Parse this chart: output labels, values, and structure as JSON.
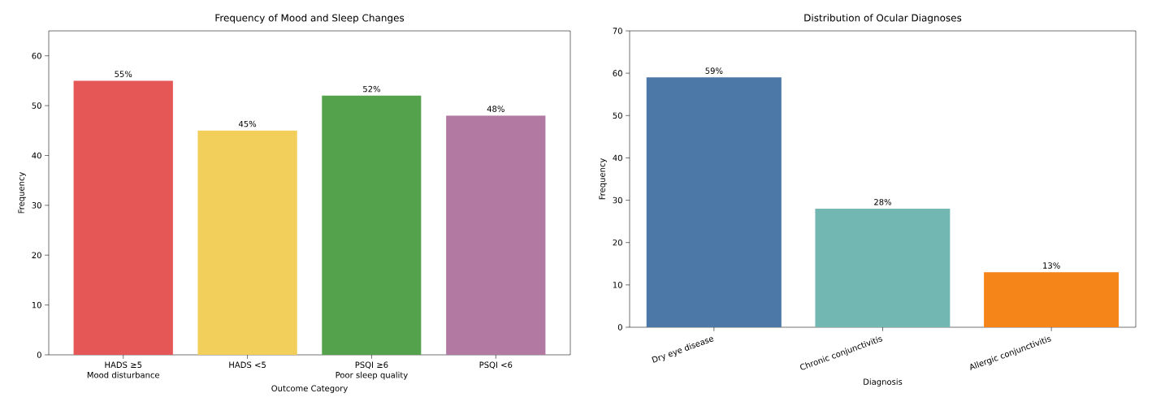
{
  "chart_data": [
    {
      "type": "bar",
      "title": "Frequency of Mood and Sleep Changes",
      "xlabel": "Outcome Category",
      "ylabel": "Frequency",
      "categories": [
        "HADS ≥5\nMood disturbance",
        "HADS <5",
        "PSQI ≥6\nPoor sleep quality",
        "PSQI <6"
      ],
      "values": [
        55,
        45,
        52,
        48
      ],
      "colors": [
        "#e45756",
        "#f2cf5b",
        "#54a24b",
        "#b279a2"
      ],
      "value_labels": [
        "55%",
        "45%",
        "52%",
        "48%"
      ],
      "ylim": [
        0,
        65
      ],
      "yticks": [
        0,
        10,
        20,
        30,
        40,
        50,
        60
      ],
      "grid": false
    },
    {
      "type": "bar",
      "title": "Distribution of Ocular Diagnoses",
      "xlabel": "Diagnosis",
      "ylabel": "Frequency",
      "categories": [
        "Dry eye disease",
        "Chronic conjunctivitis",
        "Allergic conjunctivitis"
      ],
      "values": [
        59,
        28,
        13
      ],
      "colors": [
        "#4c78a8",
        "#72b7b2",
        "#f58518"
      ],
      "value_labels": [
        "59%",
        "28%",
        "13%"
      ],
      "ylim": [
        0,
        70
      ],
      "yticks": [
        0,
        10,
        20,
        30,
        40,
        50,
        60,
        70
      ],
      "grid": false
    }
  ]
}
